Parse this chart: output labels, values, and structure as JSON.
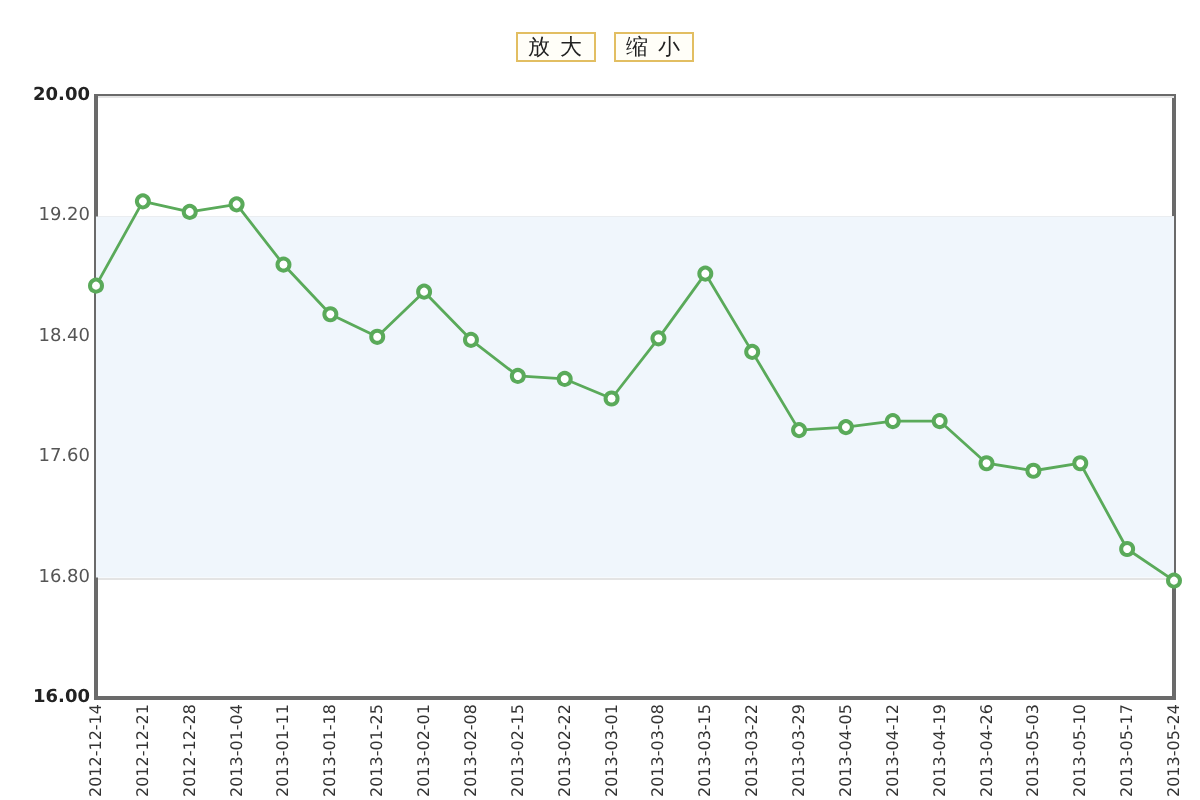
{
  "chart_data": {
    "type": "line",
    "categories": [
      "2012-12-14",
      "2012-12-21",
      "2012-12-28",
      "2013-01-04",
      "2013-01-11",
      "2013-01-18",
      "2013-01-25",
      "2013-02-01",
      "2013-02-08",
      "2013-02-15",
      "2013-02-22",
      "2013-03-01",
      "2013-03-08",
      "2013-03-15",
      "2013-03-22",
      "2013-03-29",
      "2013-04-05",
      "2013-04-12",
      "2013-04-19",
      "2013-04-26",
      "2013-05-03",
      "2013-05-10",
      "2013-05-17",
      "2013-05-24"
    ],
    "values": [
      18.74,
      19.3,
      19.23,
      19.28,
      18.88,
      18.55,
      18.4,
      18.7,
      18.38,
      18.14,
      18.12,
      17.99,
      18.39,
      18.82,
      18.3,
      17.78,
      17.8,
      17.84,
      17.84,
      17.56,
      17.51,
      17.56,
      16.99,
      16.78
    ],
    "color": "#5aaa5a",
    "ylim": [
      16,
      20
    ],
    "yticks": [
      {
        "value": 16,
        "label": "16.00"
      },
      {
        "value": 16.8,
        "label": "16.80"
      },
      {
        "value": 17.6,
        "label": "17.60"
      },
      {
        "value": 18.4,
        "label": "18.40"
      },
      {
        "value": 19.2,
        "label": "19.20"
      },
      {
        "value": 20,
        "label": "20.00"
      }
    ],
    "grid": "y",
    "marker": "circle",
    "line_style": "solid",
    "bands": [
      {
        "axis": "y",
        "from": 16.8,
        "to": 19.2,
        "color": "#f0f6fc"
      }
    ],
    "annotations": [
      "放大",
      "缩小"
    ]
  }
}
